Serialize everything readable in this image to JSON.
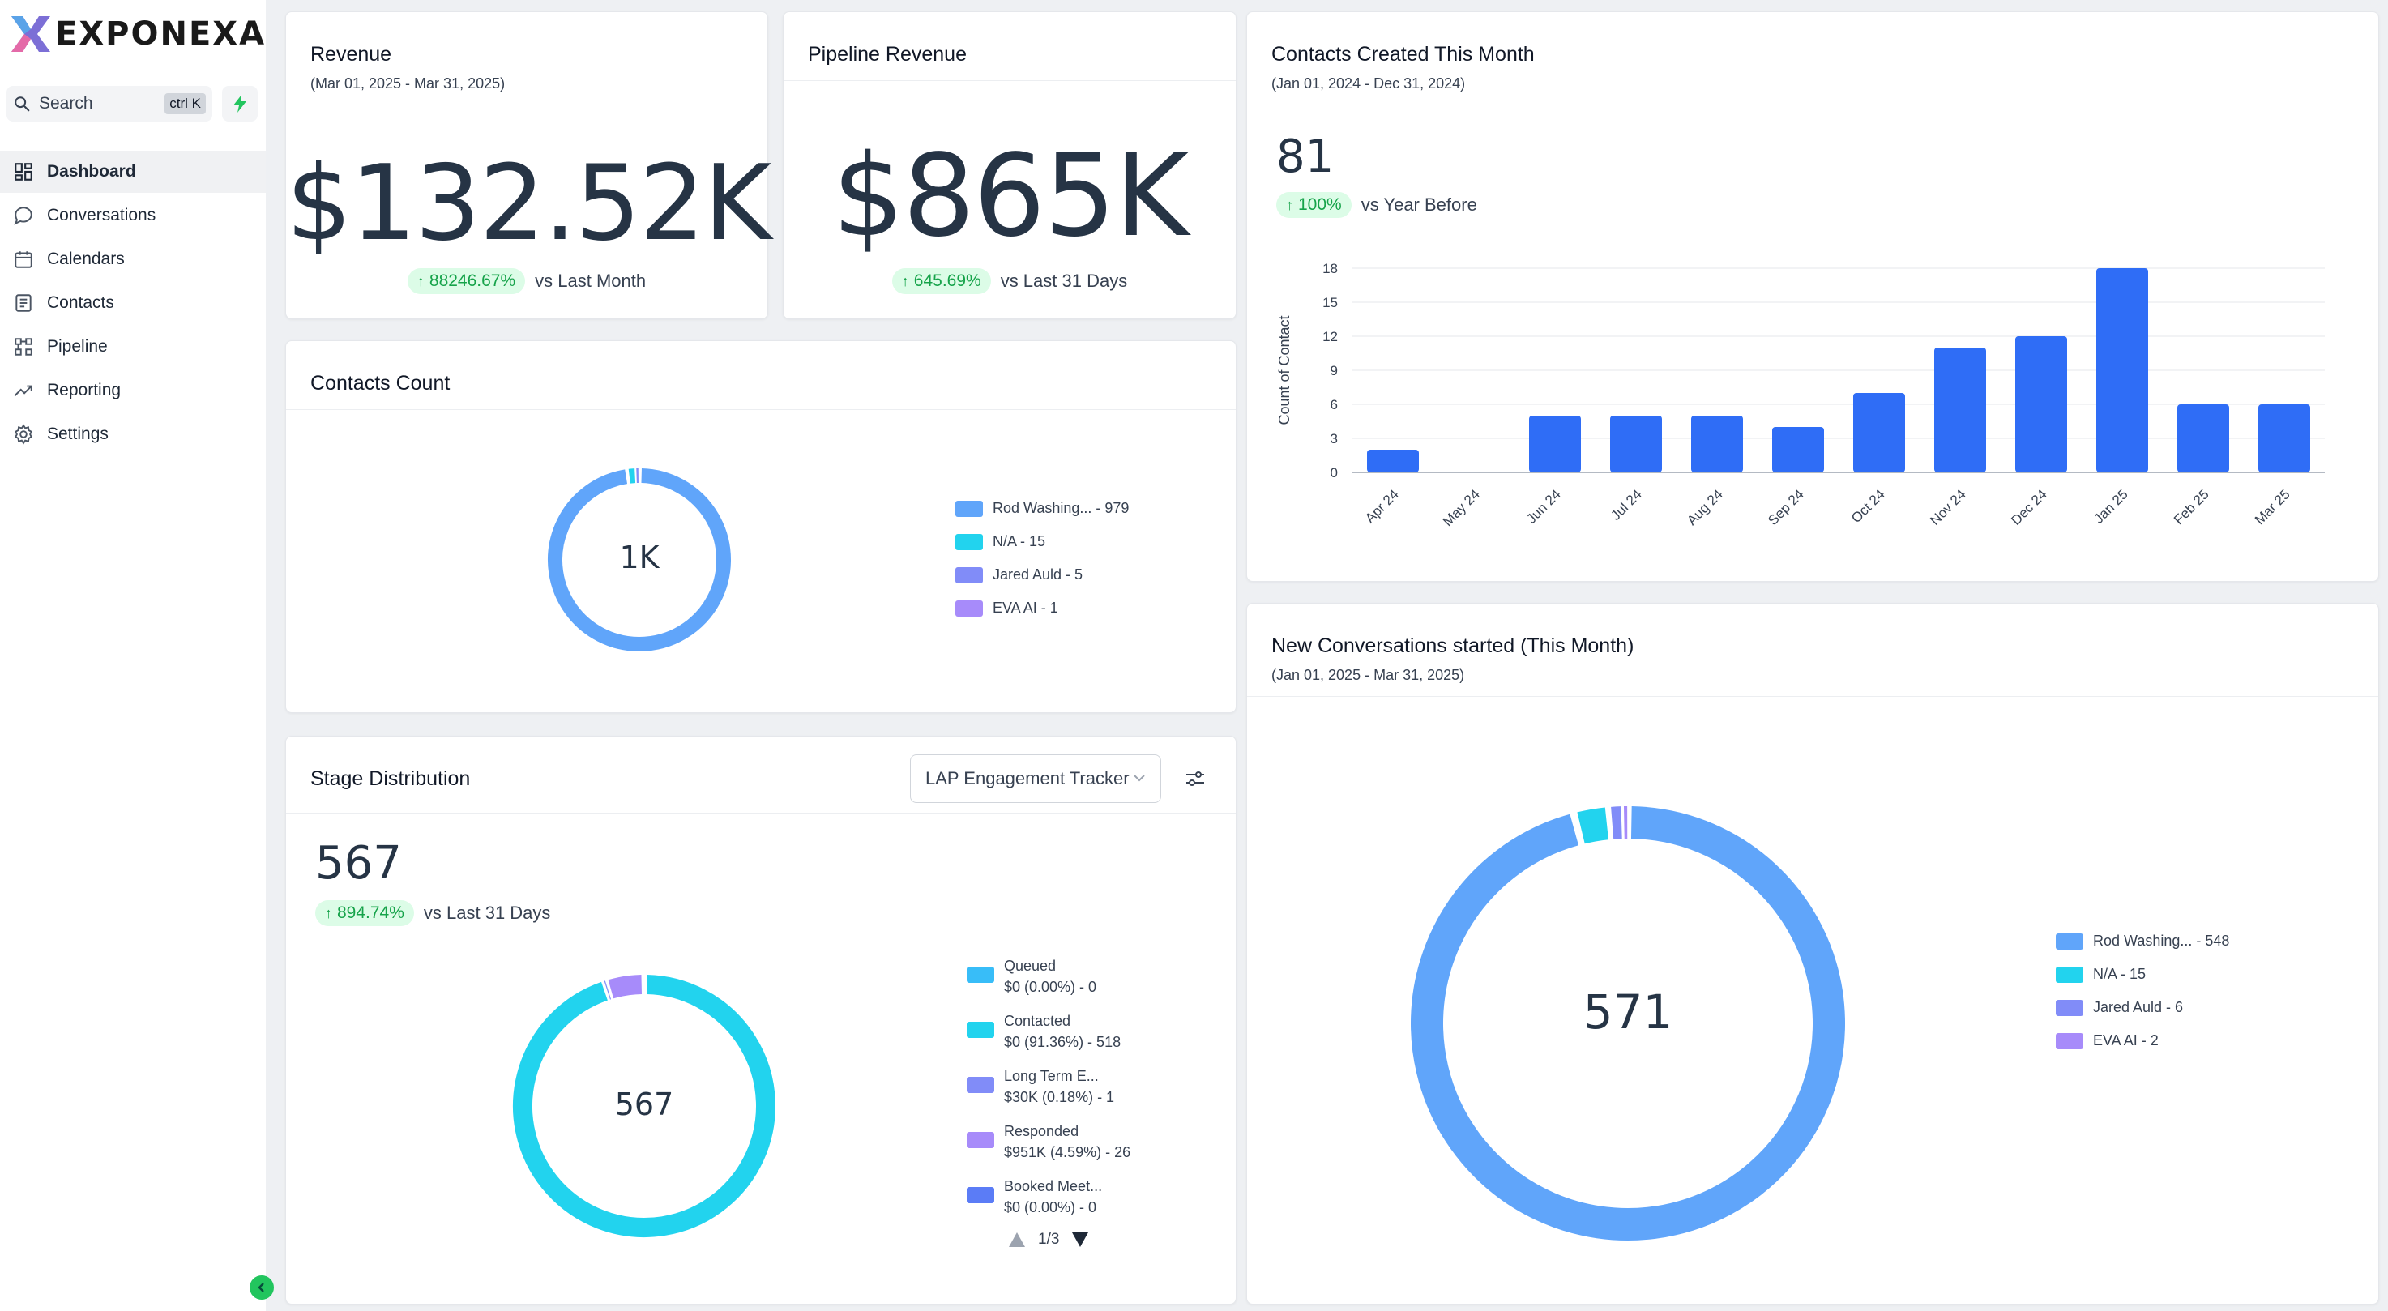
{
  "app": {
    "logo_text": "EXPONEXA",
    "search_label": "Search",
    "search_shortcut": "ctrl K"
  },
  "sidebar": {
    "items": [
      {
        "label": "Dashboard",
        "icon": "dashboard-icon",
        "active": true
      },
      {
        "label": "Conversations",
        "icon": "chat-bubble-icon"
      },
      {
        "label": "Calendars",
        "icon": "calendar-icon"
      },
      {
        "label": "Contacts",
        "icon": "contact-book-icon"
      },
      {
        "label": "Pipeline",
        "icon": "pipeline-icon"
      },
      {
        "label": "Reporting",
        "icon": "trend-line-icon"
      },
      {
        "label": "Settings",
        "icon": "gear-icon"
      }
    ]
  },
  "revenue": {
    "title": "Revenue",
    "range": "(Mar 01, 2025 - Mar 31, 2025)",
    "value": "$132.52K",
    "delta": "88246.67%",
    "compare": "vs Last Month"
  },
  "pipeline_revenue": {
    "title": "Pipeline Revenue",
    "value": "$865K",
    "delta": "645.69%",
    "compare": "vs Last 31 Days"
  },
  "contacts_created": {
    "title": "Contacts Created This Month",
    "range": "(Jan 01, 2024 - Dec 31, 2024)",
    "value": "81",
    "delta": "100%",
    "compare": "vs Year Before"
  },
  "contacts_count": {
    "title": "Contacts Count",
    "center": "1K",
    "legend": [
      {
        "label": "Rod Washing... - 979",
        "color": "#60a5fa"
      },
      {
        "label": "N/A - 15",
        "color": "#22d3ee"
      },
      {
        "label": "Jared Auld - 5",
        "color": "#818cf8"
      },
      {
        "label": "EVA AI - 1",
        "color": "#a78bfa"
      }
    ]
  },
  "stage_distribution": {
    "title": "Stage Distribution",
    "pipeline_select": "LAP Engagement Tracker",
    "value": "567",
    "delta": "894.74%",
    "compare": "vs Last 31 Days",
    "center": "567",
    "legend": [
      {
        "name": "Queued",
        "detail": "$0 (0.00%) - 0",
        "color": "#38bdf8"
      },
      {
        "name": "Contacted",
        "detail": "$0 (91.36%) - 518",
        "color": "#22d3ee"
      },
      {
        "name": "Long Term E...",
        "detail": "$30K (0.18%) - 1",
        "color": "#818cf8"
      },
      {
        "name": "Responded",
        "detail": "$951K (4.59%) - 26",
        "color": "#a78bfa"
      },
      {
        "name": "Booked Meet...",
        "detail": "$0 (0.00%) - 0",
        "color": "#5b7cf6"
      }
    ],
    "page": "1/3"
  },
  "new_conversations": {
    "title": "New Conversations started (This Month)",
    "range": "(Jan 01, 2025 - Mar 31, 2025)",
    "center": "571",
    "legend": [
      {
        "label": "Rod Washing... - 548",
        "color": "#60a5fa"
      },
      {
        "label": "N/A - 15",
        "color": "#22d3ee"
      },
      {
        "label": "Jared Auld - 6",
        "color": "#818cf8"
      },
      {
        "label": "EVA AI - 2",
        "color": "#a78bfa"
      }
    ]
  },
  "chart_data": [
    {
      "type": "bar",
      "title": "Contacts Created This Month",
      "xlabel": "",
      "ylabel": "Count of Contact",
      "categories": [
        "Apr 24",
        "May 24",
        "Jun 24",
        "Jul 24",
        "Aug 24",
        "Sep 24",
        "Oct 24",
        "Nov 24",
        "Dec 24",
        "Jan 25",
        "Feb 25",
        "Mar 25"
      ],
      "values": [
        2,
        0,
        5,
        5,
        5,
        4,
        7,
        11,
        12,
        18,
        6,
        6
      ],
      "yticks": [
        0,
        3,
        6,
        9,
        12,
        15,
        18
      ],
      "ylim": [
        0,
        18
      ],
      "grid": true,
      "color": "#2f6df6"
    },
    {
      "type": "pie",
      "title": "Contacts Count",
      "categories": [
        "Rod Washing...",
        "N/A",
        "Jared Auld",
        "EVA AI"
      ],
      "values": [
        979,
        15,
        5,
        1
      ],
      "colors": [
        "#60a5fa",
        "#22d3ee",
        "#818cf8",
        "#a78bfa"
      ]
    },
    {
      "type": "pie",
      "title": "Stage Distribution",
      "categories": [
        "Queued",
        "Contacted",
        "Long Term E...",
        "Responded",
        "Booked Meet..."
      ],
      "values": [
        0,
        518,
        1,
        26,
        0
      ],
      "colors": [
        "#38bdf8",
        "#22d3ee",
        "#818cf8",
        "#a78bfa",
        "#5b7cf6"
      ]
    },
    {
      "type": "pie",
      "title": "New Conversations started (This Month)",
      "categories": [
        "Rod Washing...",
        "N/A",
        "Jared Auld",
        "EVA AI"
      ],
      "values": [
        548,
        15,
        6,
        2
      ],
      "colors": [
        "#60a5fa",
        "#22d3ee",
        "#818cf8",
        "#a78bfa"
      ]
    }
  ]
}
